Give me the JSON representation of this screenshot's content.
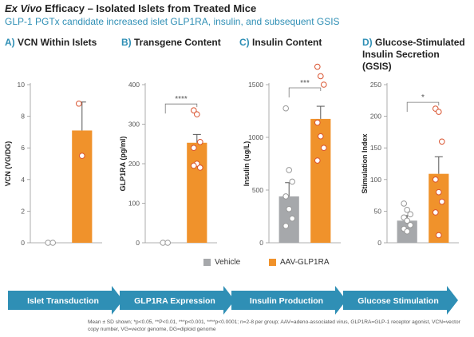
{
  "header": {
    "title_italic": "Ex Vivo",
    "title_rest": " Efficacy – Isolated Islets from Treated Mice",
    "subtitle": "GLP-1 PGTx candidate increased islet GLP1RA, insulin, and subsequent GSIS"
  },
  "colors": {
    "vehicle": "#a6a8ab",
    "treatment": "#f0922b",
    "accent": "#2f8fb5",
    "point_ring": "#d9532f"
  },
  "legend": {
    "vehicle_label": "Vehicle",
    "treatment_label": "AAV-GLP1RA"
  },
  "chart_data": [
    {
      "type": "bar",
      "panel_letter": "A)",
      "panel_title": "VCN Within Islets",
      "ylabel": "VCN (VG/DG)",
      "ylim": [
        0,
        10
      ],
      "yticks": [
        0,
        2,
        4,
        6,
        8,
        10
      ],
      "categories": [
        "Vehicle",
        "AAV-GLP1RA"
      ],
      "values": [
        0,
        7.1
      ],
      "errors": [
        0,
        1.8
      ],
      "points": [
        [
          0,
          0
        ],
        [
          8.8,
          5.5
        ]
      ],
      "significance": ""
    },
    {
      "type": "bar",
      "panel_letter": "B)",
      "panel_title": "Transgene Content",
      "ylabel": "GLP1RA (pg/ml)",
      "ylim": [
        0,
        400
      ],
      "yticks": [
        0,
        100,
        200,
        300,
        400
      ],
      "categories": [
        "Vehicle",
        "AAV-GLP1RA"
      ],
      "values": [
        0,
        253
      ],
      "errors": [
        0,
        21
      ],
      "points": [
        [
          0,
          0
        ],
        [
          335,
          325,
          255,
          240,
          200,
          190,
          195
        ]
      ],
      "significance": "****"
    },
    {
      "type": "bar",
      "panel_letter": "C)",
      "panel_title": "Insulin Content",
      "ylabel": "Insulin (ug/L)",
      "ylim": [
        0,
        1500
      ],
      "yticks": [
        0,
        500,
        1000,
        1500
      ],
      "categories": [
        "Vehicle",
        "AAV-GLP1RA"
      ],
      "values": [
        440,
        1175
      ],
      "errors": [
        130,
        120
      ],
      "points": [
        [
          1275,
          690,
          580,
          440,
          320,
          230,
          160
        ],
        [
          1670,
          1580,
          1500,
          1140,
          1010,
          900,
          780
        ]
      ],
      "significance": "***"
    },
    {
      "type": "bar",
      "panel_letter": "D)",
      "panel_title": "Glucose-Stimulated Insulin Secretion (GSIS)",
      "ylabel": "Stimulation Index",
      "ylim": [
        0,
        250
      ],
      "yticks": [
        0,
        50,
        100,
        150,
        200,
        250
      ],
      "categories": [
        "Vehicle",
        "AAV-GLP1RA"
      ],
      "values": [
        35,
        109
      ],
      "errors": [
        8,
        27
      ],
      "points": [
        [
          62,
          52,
          45,
          40,
          35,
          28,
          22,
          18
        ],
        [
          212,
          207,
          160,
          100,
          80,
          65,
          48,
          12
        ]
      ],
      "significance": "*"
    }
  ],
  "process": [
    "Islet Transduction",
    "GLP1RA Expression",
    "Insulin Production",
    "Glucose Stimulation"
  ],
  "footnote": "Mean ± SD shown; *p<0.05, **P<0.01, ***p<0.001, ****p<0.0001; n=2-8 per group; AAV=adeno-associated virus, GLP1RA=GLP-1 receptor agonist, VCN=vector copy number, VG=vector genome, DG=diploid genome"
}
